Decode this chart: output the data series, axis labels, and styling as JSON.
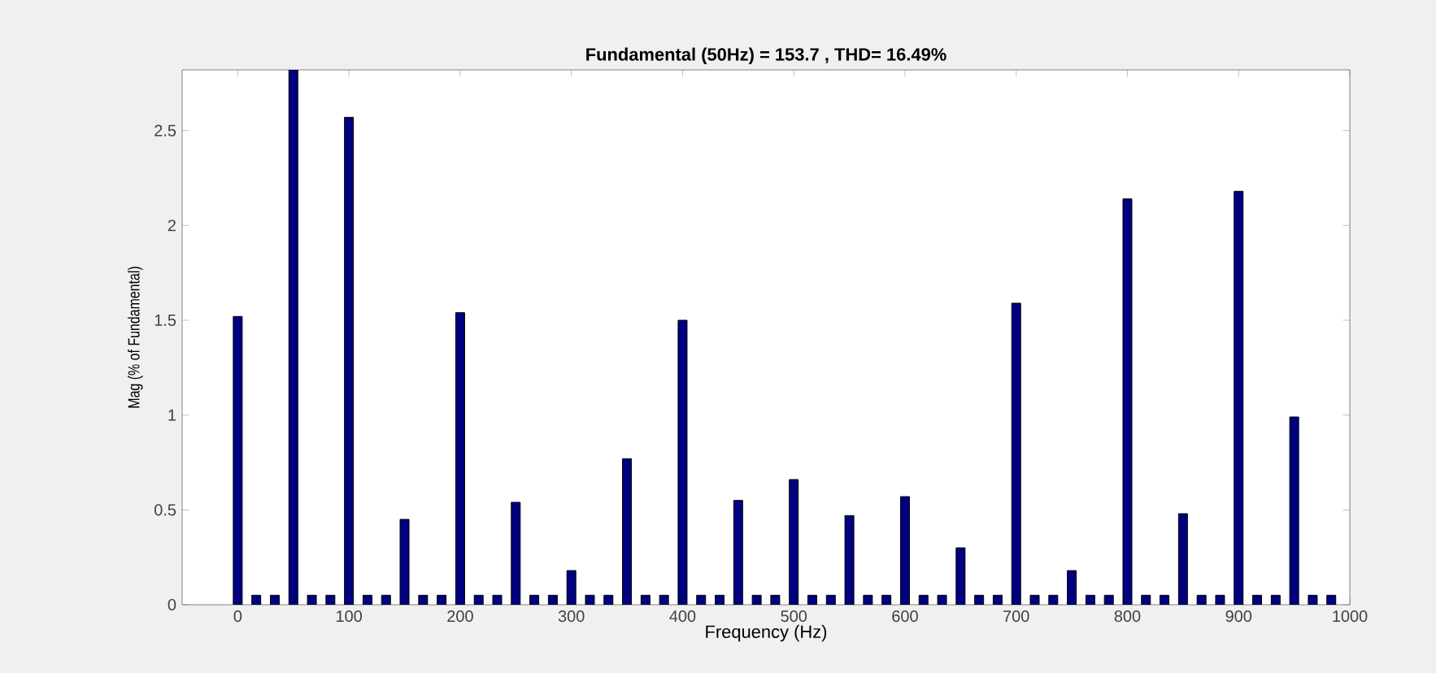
{
  "chart_data": {
    "type": "bar",
    "title": "Fundamental (50Hz) = 153.7 , THD= 16.49%",
    "xlabel": "Frequency (Hz)",
    "ylabel": "Mag (% of Fundamental)",
    "x": [
      0,
      16.67,
      33.33,
      50,
      66.67,
      83.33,
      100,
      116.67,
      133.33,
      150,
      166.67,
      183.33,
      200,
      216.67,
      233.33,
      250,
      266.67,
      283.33,
      300,
      316.67,
      333.33,
      350,
      366.67,
      383.33,
      400,
      416.67,
      433.33,
      450,
      466.67,
      483.33,
      500,
      516.67,
      533.33,
      550,
      566.67,
      583.33,
      600,
      616.67,
      633.33,
      650,
      666.67,
      683.33,
      700,
      716.67,
      733.33,
      750,
      766.67,
      783.33,
      800,
      816.67,
      833.33,
      850,
      866.67,
      883.33,
      900,
      916.67,
      933.33,
      950,
      966.67,
      983.33
    ],
    "values": [
      1.52,
      0.05,
      0.05,
      2.82,
      0.05,
      0.05,
      2.57,
      0.05,
      0.05,
      0.45,
      0.05,
      0.05,
      1.54,
      0.05,
      0.05,
      0.54,
      0.05,
      0.05,
      0.18,
      0.05,
      0.05,
      0.77,
      0.05,
      0.05,
      1.5,
      0.05,
      0.05,
      0.55,
      0.05,
      0.05,
      0.66,
      0.05,
      0.05,
      0.47,
      0.05,
      0.05,
      0.57,
      0.05,
      0.05,
      0.3,
      0.05,
      0.05,
      1.59,
      0.05,
      0.05,
      0.18,
      0.05,
      0.05,
      2.14,
      0.05,
      0.05,
      0.48,
      0.05,
      0.05,
      2.18,
      0.05,
      0.05,
      0.99,
      0.05,
      0.05
    ],
    "color": "#000080",
    "xlim": [
      -50,
      1000
    ],
    "xticks": [
      0,
      100,
      200,
      300,
      400,
      500,
      600,
      700,
      800,
      900,
      1000
    ],
    "ylim": [
      0,
      2.82
    ],
    "yticks": [
      0,
      0.5,
      1,
      1.5,
      2,
      2.5
    ]
  }
}
